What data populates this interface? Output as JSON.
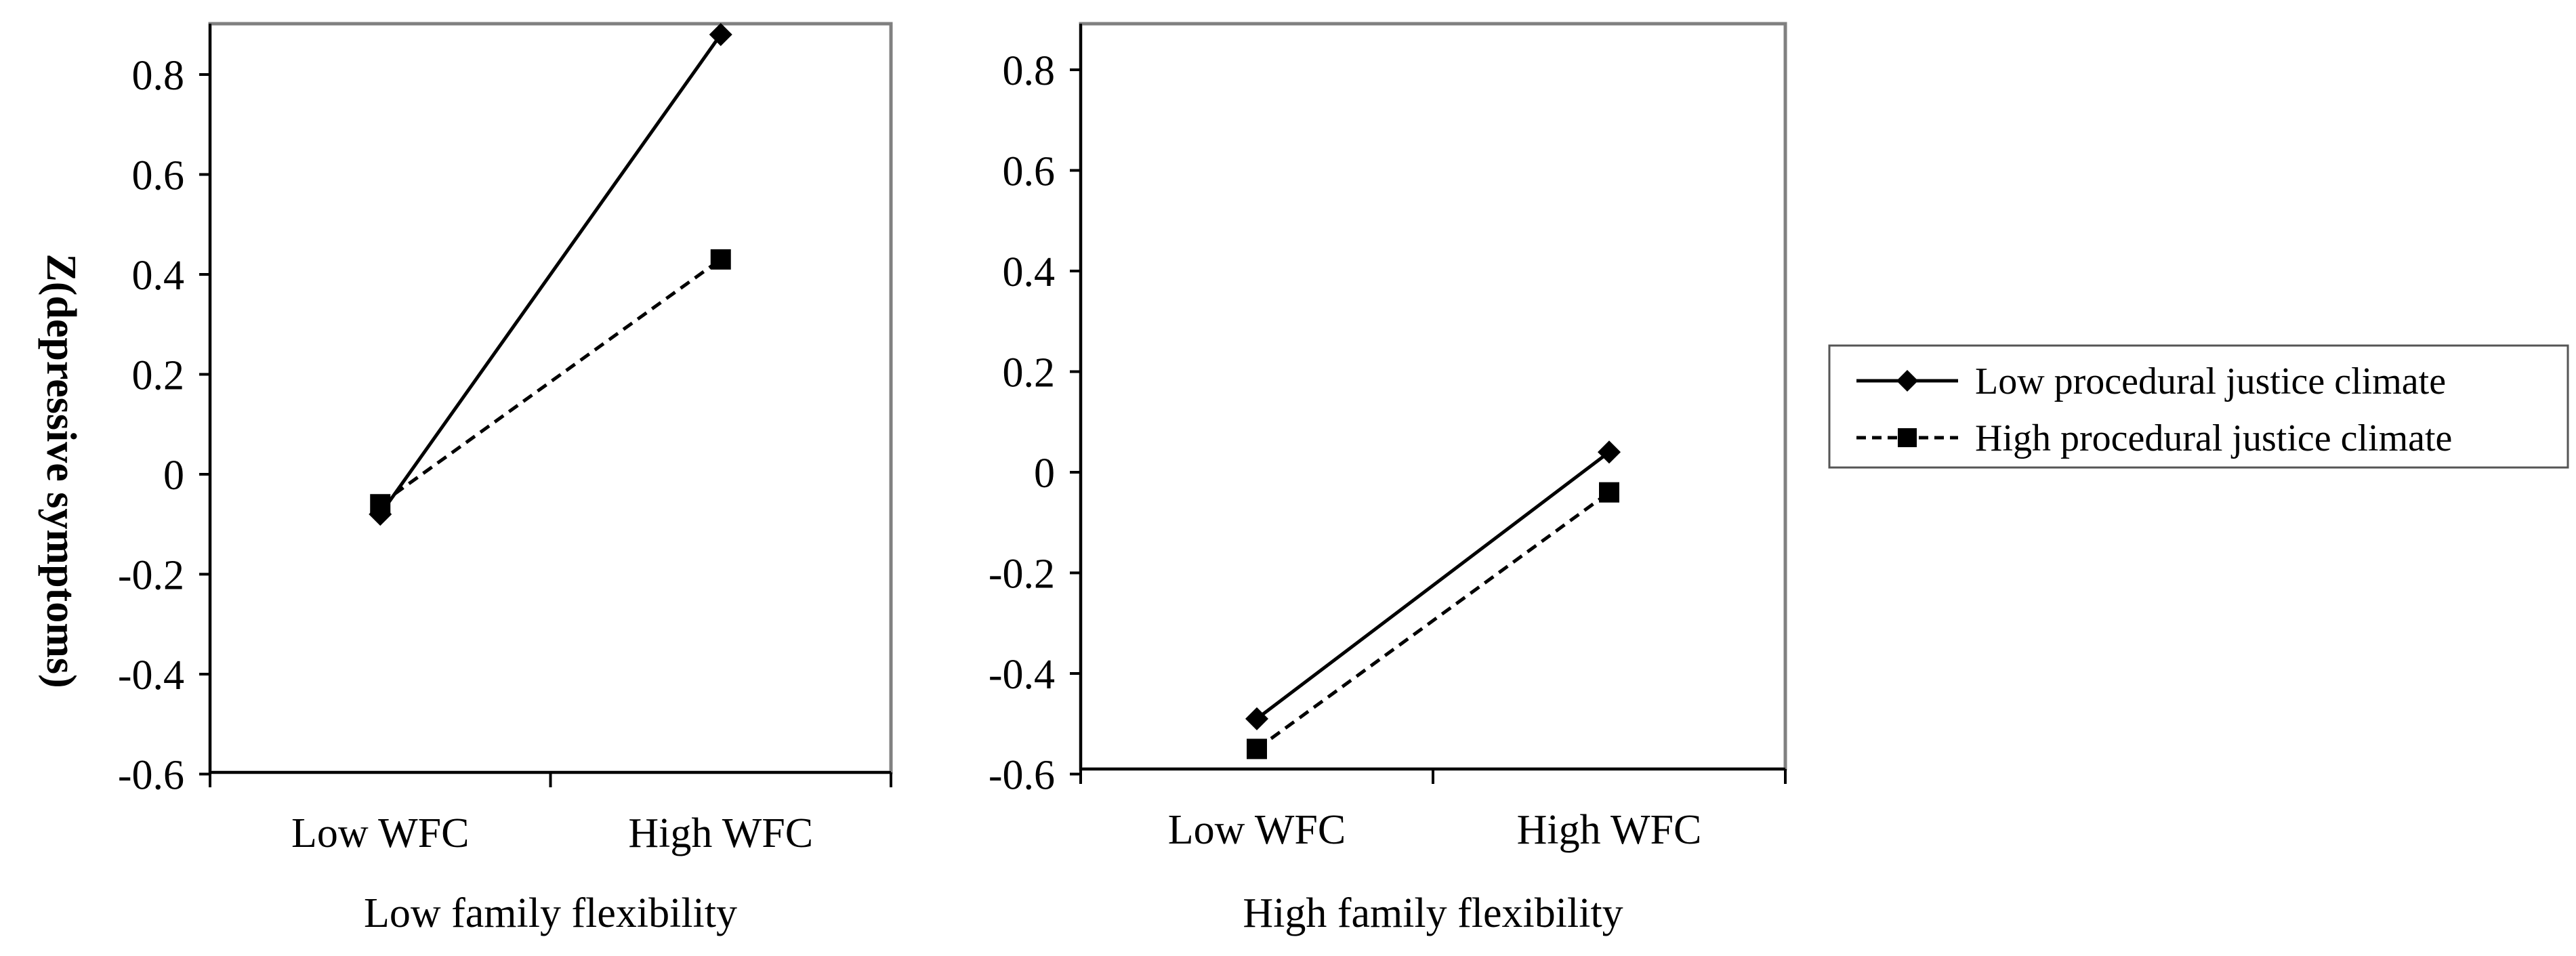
{
  "chart_data": [
    {
      "type": "line",
      "title": "",
      "xlabel": "Low family flexibility",
      "ylabel": "Z(depressive symptoms)",
      "categories": [
        "Low WFC",
        "High WFC"
      ],
      "yticks": [
        "0.8",
        "0.6",
        "0.4",
        "0.2",
        "0",
        "-0.2",
        "-0.4",
        "-0.6"
      ],
      "ylim": [
        -0.6,
        0.9
      ],
      "series": [
        {
          "name": "Low procedural justice climate",
          "marker": "diamond",
          "line": "solid",
          "values": [
            -0.08,
            0.88
          ]
        },
        {
          "name": "High procedural justice climate",
          "marker": "square",
          "line": "dashed",
          "values": [
            -0.06,
            0.43
          ]
        }
      ]
    },
    {
      "type": "line",
      "title": "",
      "xlabel": "High family flexibility",
      "ylabel": "",
      "categories": [
        "Low WFC",
        "High WFC"
      ],
      "yticks": [
        "0.8",
        "0.6",
        "0.4",
        "0.2",
        "0",
        "-0.2",
        "-0.4",
        "-0.6"
      ],
      "ylim": [
        -0.6,
        0.9
      ],
      "series": [
        {
          "name": "Low procedural justice climate",
          "marker": "diamond",
          "line": "solid",
          "values": [
            -0.49,
            0.04
          ]
        },
        {
          "name": "High procedural justice climate",
          "marker": "square",
          "line": "dashed",
          "values": [
            -0.55,
            -0.04
          ]
        }
      ]
    }
  ],
  "legend": {
    "items": [
      {
        "label": "Low procedural justice climate",
        "marker": "diamond",
        "line": "solid"
      },
      {
        "label": "High procedural justice climate",
        "marker": "square",
        "line": "dashed"
      }
    ]
  }
}
